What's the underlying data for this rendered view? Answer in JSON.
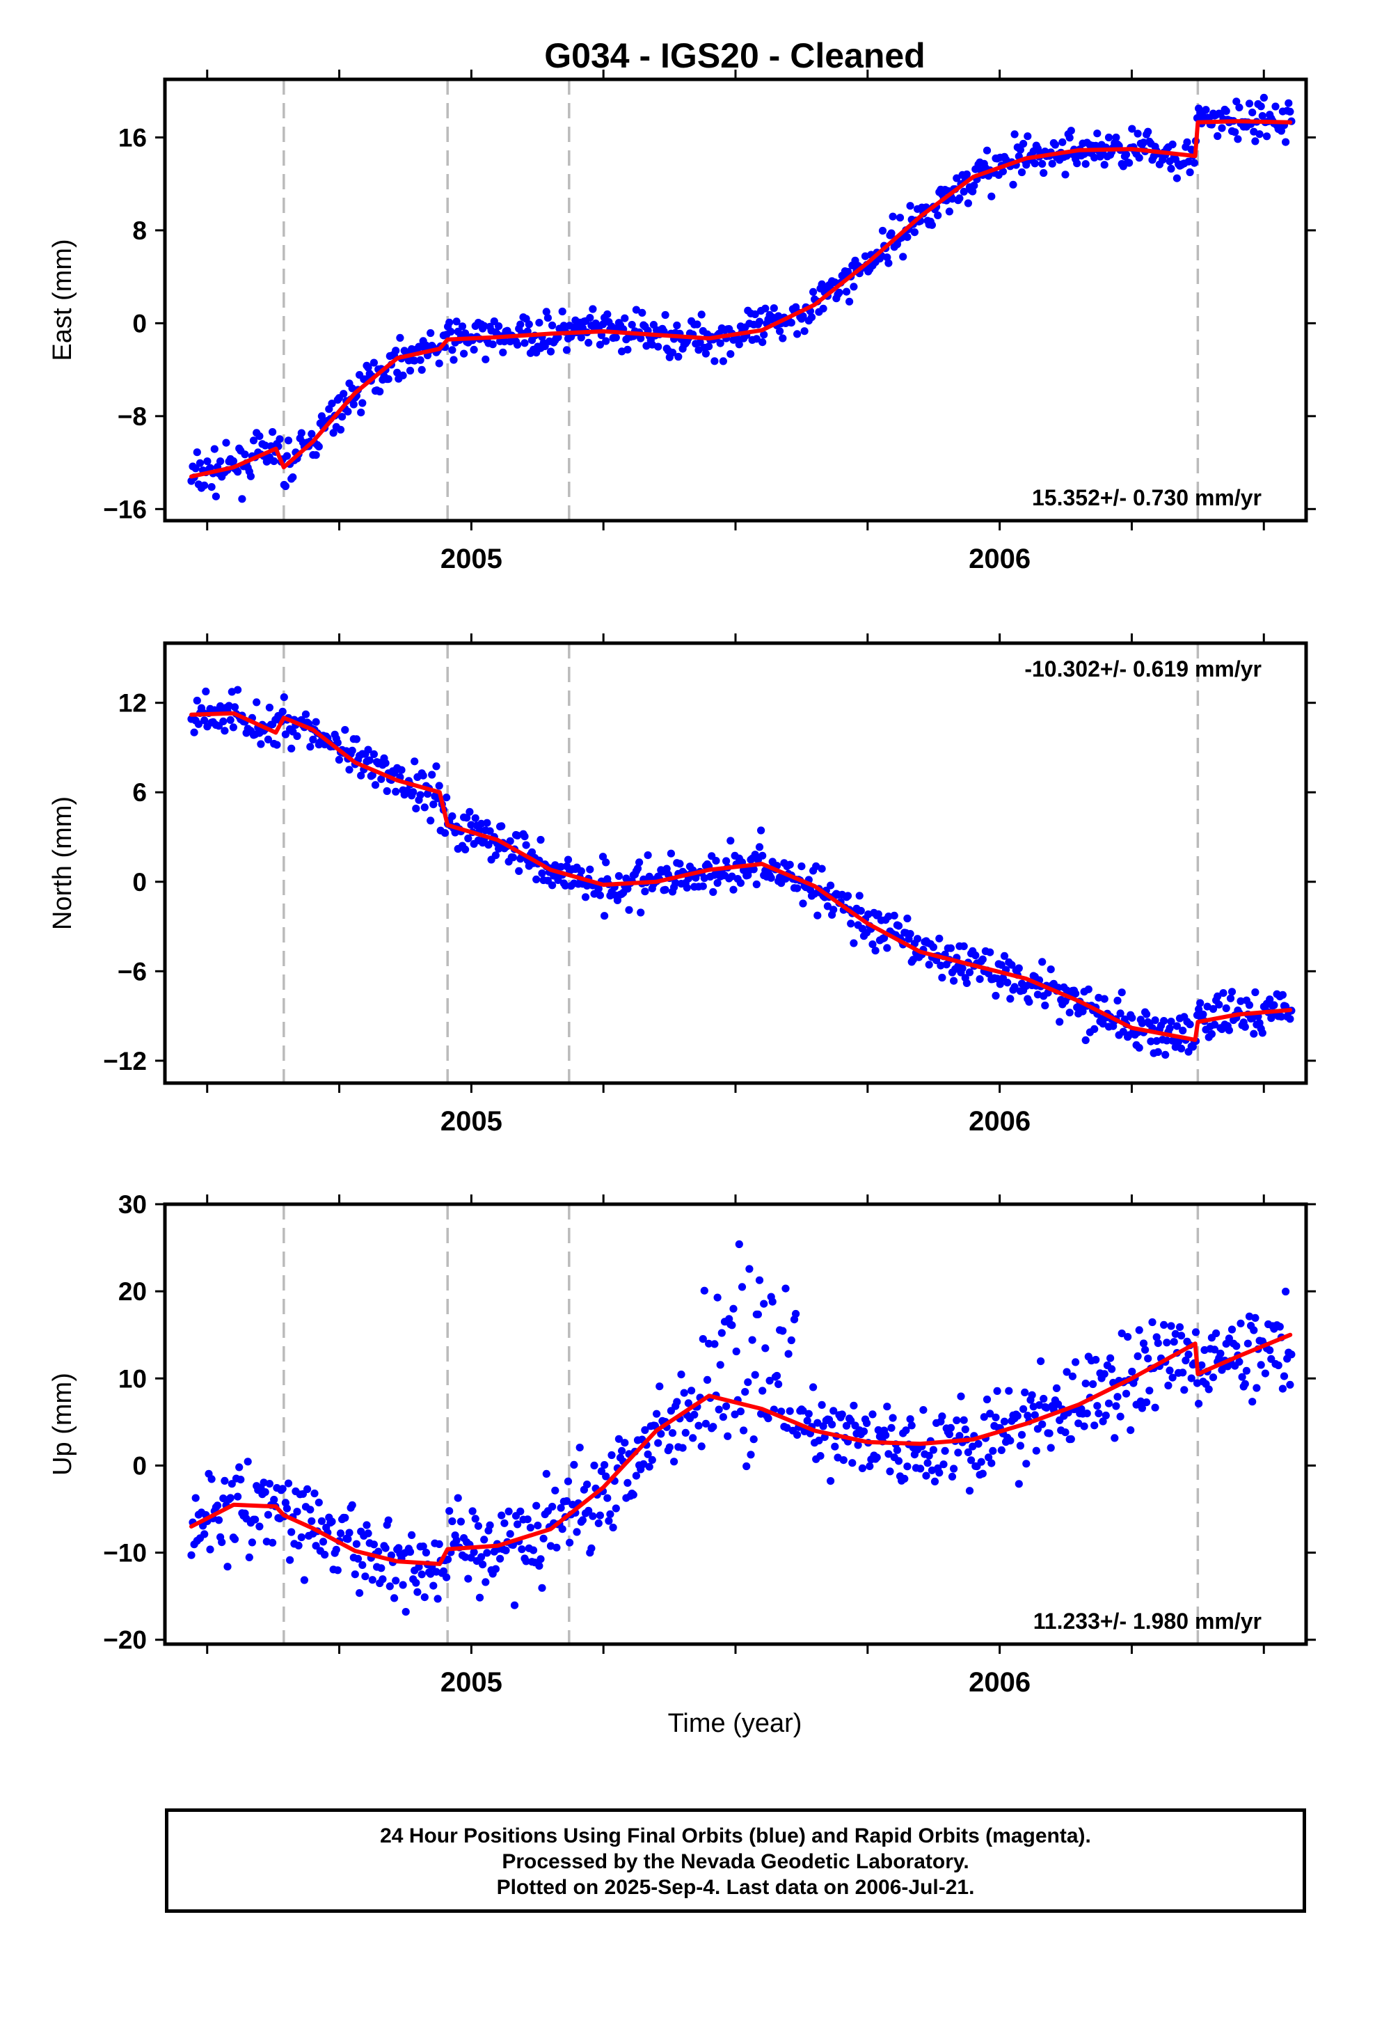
{
  "title": "G034  - IGS20 - Cleaned",
  "chart_data": [
    {
      "type": "scatter",
      "ylabel": "East (mm)",
      "ylim": [
        -17,
        21
      ],
      "yticks": [
        -16,
        -8,
        0,
        8,
        16
      ],
      "ytick_labels": [
        "−16",
        "−8",
        "0",
        "8",
        "16"
      ],
      "xlim": [
        2004.42,
        2006.58
      ],
      "xtick_labels": [
        "2005",
        "2006"
      ],
      "rate_text": "15.352+/- 0.730 mm/yr",
      "rate_position": "bottom-right",
      "series": [
        {
          "color": "#0000ff",
          "kind": "points"
        },
        {
          "color": "#ff0000",
          "kind": "model-line",
          "x": [
            2004.47,
            2004.55,
            2004.63,
            2004.645,
            2004.7,
            2004.78,
            2004.86,
            2004.94,
            2004.955,
            2005.05,
            2005.15,
            2005.25,
            2005.35,
            2005.45,
            2005.55,
            2005.65,
            2005.75,
            2005.85,
            2005.95,
            2006.05,
            2006.15,
            2006.25,
            2006.37,
            2006.375,
            2006.45,
            2006.55
          ],
          "y": [
            -13.2,
            -12.4,
            -10.8,
            -12.4,
            -10.2,
            -6.0,
            -3.0,
            -2.2,
            -1.4,
            -1.2,
            -0.9,
            -0.7,
            -1.0,
            -1.3,
            -0.6,
            1.6,
            5.2,
            9.2,
            12.6,
            14.2,
            14.9,
            15.0,
            14.4,
            17.3,
            17.4,
            17.3
          ]
        }
      ]
    },
    {
      "type": "scatter",
      "ylabel": "North (mm)",
      "ylim": [
        -13.5,
        16
      ],
      "yticks": [
        -12,
        -6,
        0,
        6,
        12
      ],
      "ytick_labels": [
        "−12",
        "−6",
        "0",
        "6",
        "12"
      ],
      "xlim": [
        2004.42,
        2006.58
      ],
      "xtick_labels": [
        "2005",
        "2006"
      ],
      "rate_text": "-10.302+/- 0.619 mm/yr",
      "rate_position": "top-right",
      "series": [
        {
          "color": "#0000ff",
          "kind": "points"
        },
        {
          "color": "#ff0000",
          "kind": "model-line",
          "x": [
            2004.47,
            2004.55,
            2004.63,
            2004.645,
            2004.7,
            2004.78,
            2004.86,
            2004.94,
            2004.955,
            2005.05,
            2005.15,
            2005.25,
            2005.35,
            2005.45,
            2005.55,
            2005.65,
            2005.75,
            2005.85,
            2005.95,
            2006.05,
            2006.15,
            2006.25,
            2006.37,
            2006.375,
            2006.45,
            2006.55
          ],
          "y": [
            11.2,
            11.3,
            10.0,
            11.0,
            10.2,
            8.0,
            6.8,
            6.0,
            3.8,
            2.8,
            0.8,
            -0.2,
            0.0,
            0.8,
            1.2,
            -0.3,
            -2.8,
            -4.7,
            -5.6,
            -6.5,
            -8.0,
            -9.8,
            -10.6,
            -9.4,
            -8.9,
            -8.6
          ]
        }
      ]
    },
    {
      "type": "scatter",
      "ylabel": "Up (mm)",
      "ylim": [
        -20.5,
        30
      ],
      "yticks": [
        -20,
        -10,
        0,
        10,
        20,
        30
      ],
      "ytick_labels": [
        "−20",
        "−10",
        "0",
        "10",
        "20",
        "30"
      ],
      "xlim": [
        2004.42,
        2006.58
      ],
      "xtick_labels": [
        "2005",
        "2006"
      ],
      "xlabel": "Time (year)",
      "rate_text": "11.233+/- 1.980 mm/yr",
      "rate_position": "bottom-right",
      "series": [
        {
          "color": "#0000ff",
          "kind": "points"
        },
        {
          "color": "#ff0000",
          "kind": "model-line",
          "x": [
            2004.47,
            2004.55,
            2004.63,
            2004.645,
            2004.7,
            2004.78,
            2004.86,
            2004.94,
            2004.955,
            2005.05,
            2005.15,
            2005.25,
            2005.35,
            2005.45,
            2005.55,
            2005.65,
            2005.75,
            2005.85,
            2005.95,
            2006.05,
            2006.15,
            2006.25,
            2006.37,
            2006.375,
            2006.45,
            2006.55
          ],
          "y": [
            -7.0,
            -4.5,
            -4.7,
            -5.7,
            -7.2,
            -9.8,
            -11.0,
            -11.3,
            -9.6,
            -9.2,
            -7.3,
            -2.5,
            4.0,
            8.0,
            6.5,
            4.0,
            2.7,
            2.5,
            3.0,
            4.8,
            7.0,
            10.0,
            14.0,
            10.5,
            12.5,
            15.0
          ]
        }
      ]
    }
  ],
  "event_lines_x": [
    2004.645,
    2004.955,
    2005.185,
    2006.375
  ],
  "footer": {
    "line1": "24 Hour Positions Using Final Orbits (blue) and Rapid Orbits (magenta).",
    "line2": "Processed by the Nevada Geodetic Laboratory.",
    "line3": "Plotted on 2025-Sep-4. Last data on 2006-Jul-21."
  }
}
